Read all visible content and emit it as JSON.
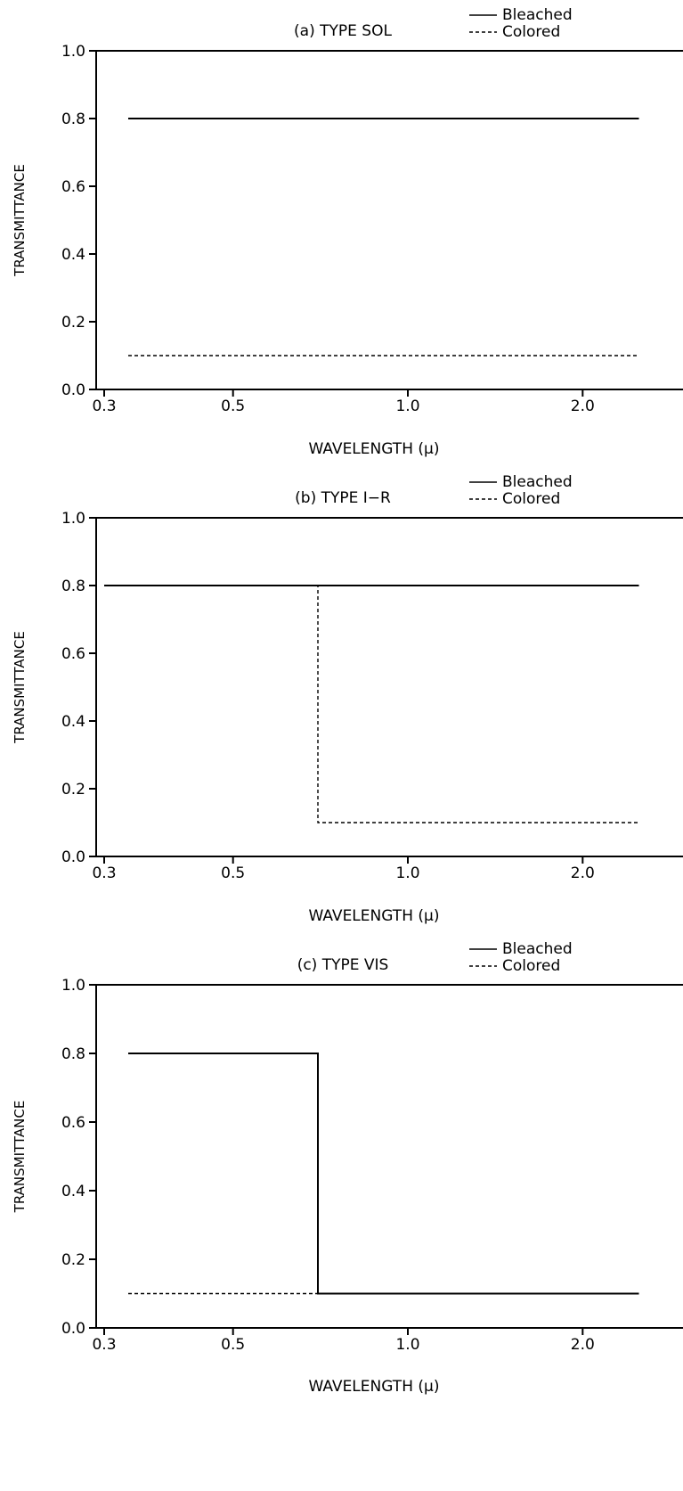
{
  "chart_data": [
    {
      "type": "line",
      "title": "(a)  TYPE SOL",
      "xlabel": "WAVELENGTH (μ)",
      "ylabel": "TRANSMITTANCE",
      "x_scale": "log",
      "x_ticks": [
        "0.3",
        "0.5",
        "1.0",
        "2.0"
      ],
      "x_tick_values": [
        0.3,
        0.5,
        1.0,
        2.0
      ],
      "y_ticks": [
        "0.0",
        "0.2",
        "0.4",
        "0.6",
        "0.8",
        "1.0"
      ],
      "y_tick_values": [
        0.0,
        0.2,
        0.4,
        0.6,
        0.8,
        1.0
      ],
      "ylim": [
        0,
        1.0
      ],
      "grid": false,
      "legend_position": "top-right",
      "series": [
        {
          "name": "Bleached",
          "style": "solid",
          "x": [
            0.33,
            2.5
          ],
          "y": [
            0.8,
            0.8
          ]
        },
        {
          "name": "Colored",
          "style": "dashed",
          "x": [
            0.33,
            2.5
          ],
          "y": [
            0.1,
            0.1
          ]
        }
      ]
    },
    {
      "type": "line",
      "title": "(b)  TYPE I−R",
      "xlabel": "WAVELENGTH (μ)",
      "ylabel": "TRANSMITTANCE",
      "x_scale": "log",
      "x_ticks": [
        "0.3",
        "0.5",
        "1.0",
        "2.0"
      ],
      "x_tick_values": [
        0.3,
        0.5,
        1.0,
        2.0
      ],
      "y_ticks": [
        "0.0",
        "0.2",
        "0.4",
        "0.6",
        "0.8",
        "1.0"
      ],
      "y_tick_values": [
        0.0,
        0.2,
        0.4,
        0.6,
        0.8,
        1.0
      ],
      "ylim": [
        0,
        1.0
      ],
      "grid": false,
      "legend_position": "top-right",
      "series": [
        {
          "name": "Bleached",
          "style": "solid",
          "x": [
            0.3,
            2.5
          ],
          "y": [
            0.8,
            0.8
          ]
        },
        {
          "name": "Colored",
          "style": "dashed",
          "x": [
            0.3,
            0.7,
            0.7,
            2.5
          ],
          "y": [
            0.8,
            0.8,
            0.1,
            0.1
          ]
        }
      ]
    },
    {
      "type": "line",
      "title": "(c)   TYPE VIS",
      "xlabel": "WAVELENGTH (μ)",
      "ylabel": "TRANSMITTANCE",
      "x_scale": "log",
      "x_ticks": [
        "0.3",
        "0.5",
        "1.0",
        "2.0"
      ],
      "x_tick_values": [
        0.3,
        0.5,
        1.0,
        2.0
      ],
      "y_ticks": [
        "0.0",
        "0.2",
        "0.4",
        "0.6",
        "0.8",
        "1.0"
      ],
      "y_tick_values": [
        0.0,
        0.2,
        0.4,
        0.6,
        0.8,
        1.0
      ],
      "ylim": [
        0,
        1.0
      ],
      "grid": false,
      "legend_position": "top-right",
      "series": [
        {
          "name": "Bleached",
          "style": "solid",
          "x": [
            0.33,
            0.7,
            0.7,
            2.5
          ],
          "y": [
            0.8,
            0.8,
            0.1,
            0.1
          ]
        },
        {
          "name": "Colored",
          "style": "dashed",
          "x": [
            0.33,
            0.7
          ],
          "y": [
            0.1,
            0.1
          ]
        }
      ]
    }
  ]
}
